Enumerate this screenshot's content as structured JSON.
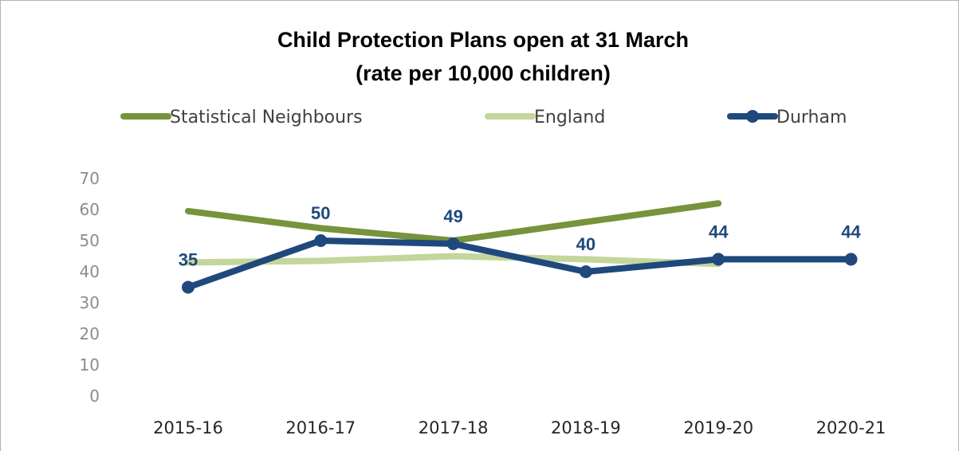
{
  "chart_data": {
    "type": "line",
    "title": [
      "Child Protection Plans open at 31 March",
      "(rate per 10,000 children)"
    ],
    "categories": [
      "2015-16",
      "2016-17",
      "2017-18",
      "2018-19",
      "2019-20",
      "2020-21"
    ],
    "ylim": [
      0,
      70
    ],
    "yticks": [
      0,
      10,
      20,
      30,
      40,
      50,
      60,
      70
    ],
    "grid": false,
    "legend_position": "top",
    "series": [
      {
        "name": "Statistical Neighbours",
        "color": "#77933c",
        "values": [
          59.5,
          54,
          50,
          56,
          62,
          null
        ],
        "markers": false,
        "data_labels": false
      },
      {
        "name": "England",
        "color": "#c3d69b",
        "values": [
          43,
          43.5,
          45,
          44,
          42.5,
          null
        ],
        "markers": false,
        "data_labels": false
      },
      {
        "name": "Durham",
        "color": "#1f497d",
        "values": [
          35,
          50,
          49,
          40,
          44,
          44
        ],
        "markers": true,
        "data_labels": true
      }
    ]
  }
}
